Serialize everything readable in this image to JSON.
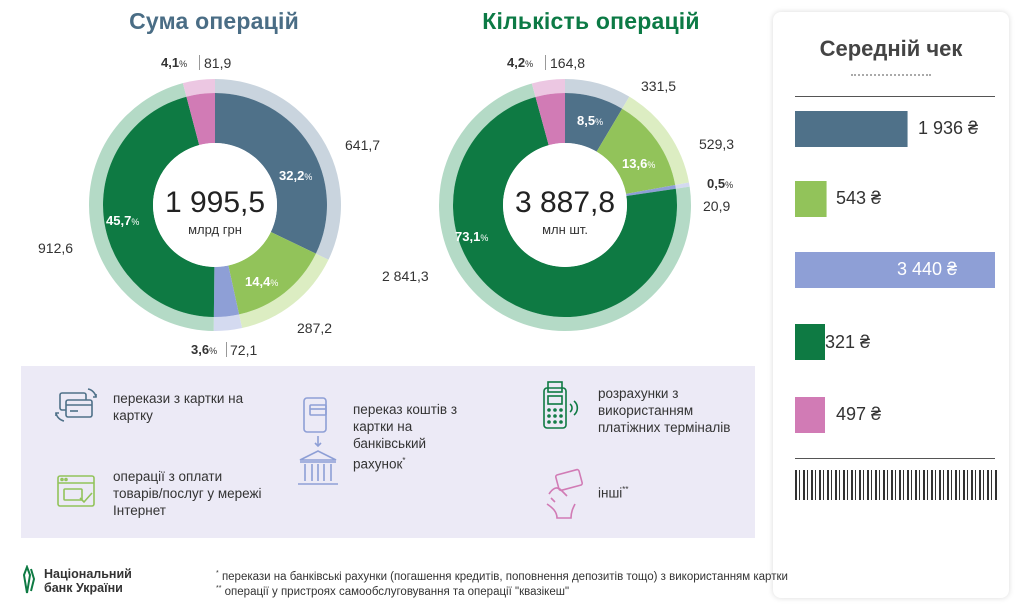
{
  "titles": {
    "sum": "Сума операцій",
    "count": "Кількість операцій"
  },
  "chart_data": [
    {
      "type": "pie",
      "title": "Сума операцій",
      "center_value": "1 995,5",
      "center_unit": "млрд грн",
      "categories": [
        "перекази з картки на картку",
        "переказ коштів з картки на банківський рахунок",
        "розрахунки з використанням платіжних терміналів",
        "операції з оплати товарів/послуг у мережі Інтернет",
        "інші"
      ],
      "values": [
        641.7,
        287.2,
        72.1,
        912.6,
        81.9
      ],
      "value_labels": [
        "641,7",
        "287,2",
        "72,1",
        "912,6",
        "81,9"
      ],
      "percents": [
        32.2,
        14.4,
        3.6,
        45.7,
        4.1
      ],
      "percent_labels": [
        "32,2",
        "14,4",
        "3,6",
        "45,7",
        "4,1"
      ]
    },
    {
      "type": "pie",
      "title": "Кількість операцій",
      "center_value": "3 887,8",
      "center_unit": "млн шт.",
      "categories": [
        "перекази з картки на картку",
        "переказ коштів з картки на банківський рахунок",
        "розрахунки з використанням платіжних терміналів",
        "операції з оплати товарів/послуг у мережі Інтернет",
        "інші"
      ],
      "values": [
        331.5,
        529.3,
        20.9,
        2841.3,
        164.8
      ],
      "value_labels": [
        "331,5",
        "529,3",
        "20,9",
        "2 841,3",
        "164,8"
      ],
      "percents": [
        8.5,
        13.6,
        0.5,
        73.1,
        4.2
      ],
      "percent_labels": [
        "8,5",
        "13,6",
        "0,5",
        "73,1",
        "4,2"
      ]
    },
    {
      "type": "bar",
      "title": "Середній чек",
      "categories": [
        "перекази з картки на картку",
        "переказ коштів з картки на банківський рахунок",
        "розрахунки з використанням платіжних терміналів",
        "операції з оплати товарів/послуг у мережі Інтернет",
        "інші"
      ],
      "values": [
        1936,
        543,
        3440,
        321,
        497
      ],
      "value_labels": [
        "1 936 ₴",
        "543 ₴",
        "3 440 ₴",
        "321 ₴",
        "497 ₴"
      ]
    }
  ],
  "colors": [
    "#4f7189",
    "#92c35a",
    "#8e9fd6",
    "#0e7a43",
    "#d17bb5"
  ],
  "ring_colors": [
    "#c9d4de",
    "#dcedc2",
    "#d4daf0",
    "#b4dac6",
    "#ecc7e2"
  ],
  "percent_sign": "%",
  "legend": {
    "card_to_card": "перекази з картки на картку",
    "card_to_account": "переказ коштів з картки на банківський рахунок",
    "card_to_account_mark": "*",
    "pos": "розрахунки з використанням платіжних терміналів",
    "internet": "операції з оплати товарів/послуг у мережі Інтернет",
    "other": "інші",
    "other_mark": "**"
  },
  "footnotes": {
    "note1_mark": "*",
    "note1": "перекази на банківські рахунки (погашення кредитів, поповнення депозитів тощо) з використанням картки",
    "note2_mark": "**",
    "note2": "операції у пристроях самообслуговування та операції \"квазікеш\""
  },
  "bank": {
    "line1": "Національний",
    "line2": "банк України"
  }
}
